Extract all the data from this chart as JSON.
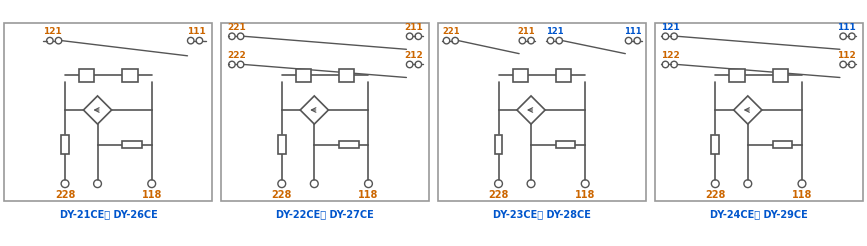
{
  "panels": [
    {
      "label": "DY-21CE， DY-26CE",
      "contact_rows": [
        {
          "labels": [
            "121",
            "111"
          ],
          "colors": [
            "#cc6600",
            "#cc6600"
          ],
          "type": "single_no"
        }
      ]
    },
    {
      "label": "DY-22CE， DY-27CE",
      "contact_rows": [
        {
          "labels": [
            "221",
            "211"
          ],
          "colors": [
            "#cc6600",
            "#cc6600"
          ],
          "type": "double_no"
        },
        {
          "labels": [
            "222",
            "212"
          ],
          "colors": [
            "#cc6600",
            "#cc6600"
          ],
          "type": "double_no"
        }
      ]
    },
    {
      "label": "DY-23CE， DY-28CE",
      "contact_rows": [
        {
          "labels": [
            "221",
            "211",
            "121",
            "111"
          ],
          "colors": [
            "#cc6600",
            "#cc6600",
            "#0055cc",
            "#0055cc"
          ],
          "type": "quad_no"
        }
      ]
    },
    {
      "label": "DY-24CE， DY-29CE",
      "contact_rows": [
        {
          "labels": [
            "121",
            "111"
          ],
          "colors": [
            "#0055cc",
            "#0055cc"
          ],
          "type": "double_no"
        },
        {
          "labels": [
            "122",
            "112"
          ],
          "colors": [
            "#cc6600",
            "#cc6600"
          ],
          "type": "double_no"
        }
      ]
    }
  ],
  "border_color": "#999999",
  "wire_color": "#555555",
  "orange": "#cc6600",
  "blue": "#0055cc",
  "label_color": "#0055cc",
  "bg_color": "#ffffff"
}
